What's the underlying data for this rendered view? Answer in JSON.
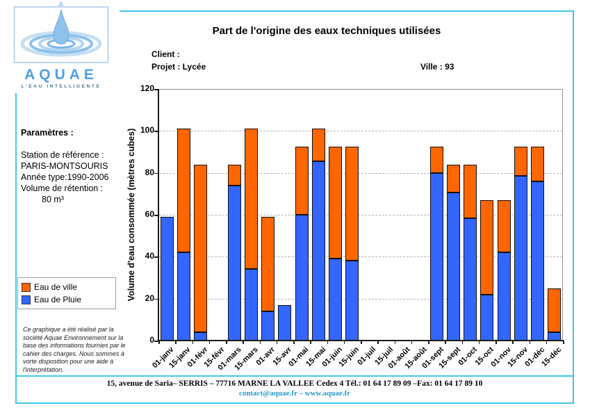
{
  "page": {
    "background": "#ffffff",
    "accent_cyan": "#3fc8e8"
  },
  "logo": {
    "brand": "AQUAE",
    "tagline": "L'EAU INTELLIGENTE"
  },
  "header": {
    "client": "Client :",
    "project": "Projet : Lycée",
    "ville": "Ville : 93"
  },
  "params": {
    "heading": "Paramètres :",
    "lines": [
      "Station de référence :",
      "PARIS-MONTSOURIS",
      "Année type:1990-2006",
      "Volume de rétention :",
      "80 m³"
    ]
  },
  "legend": {
    "items": [
      {
        "label": "Eau de ville",
        "color": "#ff6600"
      },
      {
        "label": "Eau de Pluie",
        "color": "#3366ff"
      }
    ]
  },
  "disclaimer": {
    "text": "Ce graphique a été réalisé par la société Aquae Environnement sur la base des informations fournies par le cahier des charges. Nous sommes à vorte disposition pour une aide à l'interprétation."
  },
  "footer": {
    "address": "15, avenue de Saria–  SERRIS – 77716 MARNE LA VALLEE Cedex 4  Tél.: 01 64 17 89 09  –Fax: 01 64 17 89 10",
    "contact": "contact@aquae.fr – www.aquae.fr"
  },
  "chart_data": {
    "type": "bar",
    "stacked": true,
    "title": "Part de l'origine des eaux techniques utilisées",
    "xlabel": "",
    "ylabel": "Volume d'eau consommée (mètres cubes)",
    "ylim": [
      0,
      120
    ],
    "yticks": [
      0,
      20,
      40,
      60,
      80,
      100,
      120
    ],
    "grid": "horizontal-dashed",
    "legend_position": "outside-left",
    "categories": [
      "01-janv",
      "15-janv",
      "01-févr",
      "15-févr",
      "01-mars",
      "15-mars",
      "01-avr",
      "15-avr",
      "01-mai",
      "15-mai",
      "01-juin",
      "15-juin",
      "01-juil",
      "15-juil",
      "01-août",
      "15-août",
      "01-sept",
      "15-sept",
      "01-oct",
      "15-oct",
      "01-nov",
      "15-nov",
      "01-déc",
      "15-déc"
    ],
    "series": [
      {
        "name": "Eau de Pluie",
        "color": "#3366ff",
        "values": [
          59,
          42,
          4,
          0,
          74,
          34,
          14,
          17,
          60,
          85.5,
          39,
          38,
          0,
          0,
          0,
          0,
          80,
          70.5,
          58.5,
          22,
          42,
          78.5,
          76,
          4
        ]
      },
      {
        "name": "Eau de ville",
        "color": "#ff6600",
        "values": [
          0,
          59,
          80,
          0,
          10,
          67,
          45,
          0,
          32.5,
          15.5,
          53.5,
          54.5,
          0,
          0,
          0,
          0,
          12.5,
          13.5,
          25.5,
          45,
          25,
          14,
          16.5,
          21
        ]
      }
    ]
  }
}
